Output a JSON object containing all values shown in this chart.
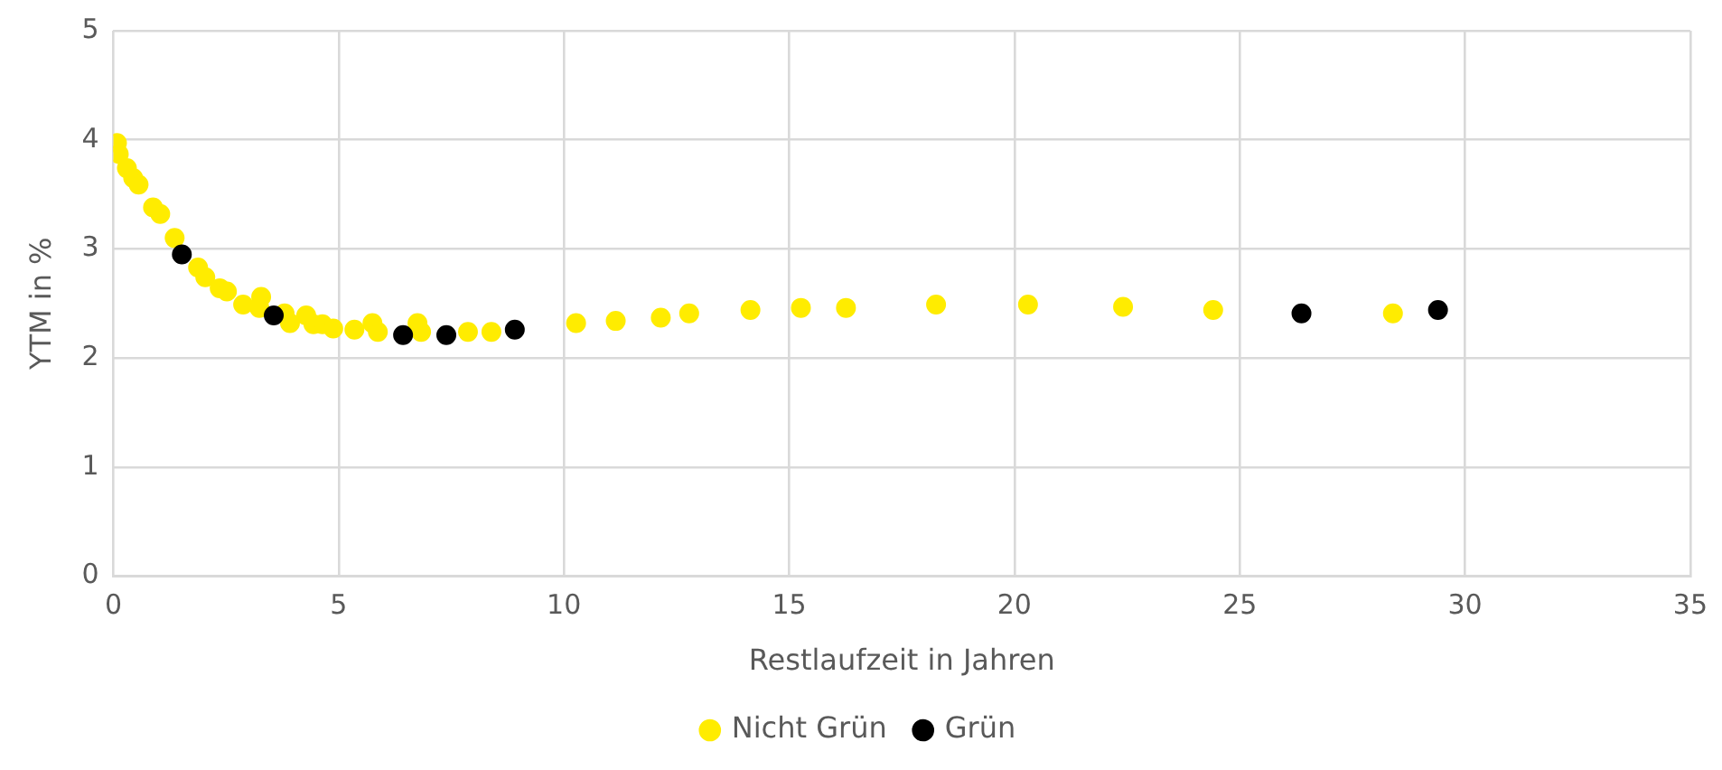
{
  "chart_data": {
    "type": "scatter",
    "xlabel": "Restlaufzeit in Jahren",
    "ylabel": "YTM in %",
    "xlim": [
      0,
      35
    ],
    "xticks": [
      0,
      5,
      10,
      15,
      20,
      25,
      30,
      35
    ],
    "ylim": [
      0,
      5
    ],
    "yticks": [
      0,
      1,
      2,
      3,
      4,
      5
    ],
    "grid": true,
    "legend": "bottom",
    "marker": "circle",
    "series": [
      {
        "name": "Nicht Grün",
        "color": "#ffec00",
        "x": [
          0.08,
          0.12,
          0.3,
          0.44,
          0.56,
          0.88,
          1.04,
          1.36,
          1.88,
          2.04,
          2.36,
          2.52,
          2.88,
          3.24,
          3.28,
          3.8,
          3.92,
          4.28,
          4.44,
          4.64,
          4.88,
          5.35,
          5.75,
          5.87,
          6.75,
          6.83,
          7.87,
          8.39,
          10.27,
          11.15,
          12.15,
          12.78,
          14.14,
          15.26,
          16.26,
          18.26,
          20.3,
          22.41,
          24.41,
          26.4,
          28.4
        ],
        "values": [
          3.97,
          3.87,
          3.74,
          3.65,
          3.59,
          3.38,
          3.32,
          3.1,
          2.83,
          2.74,
          2.64,
          2.61,
          2.49,
          2.46,
          2.56,
          2.41,
          2.32,
          2.39,
          2.31,
          2.31,
          2.27,
          2.26,
          2.32,
          2.24,
          2.32,
          2.24,
          2.24,
          2.24,
          2.32,
          2.34,
          2.37,
          2.41,
          2.44,
          2.46,
          2.46,
          2.49,
          2.49,
          2.47,
          2.44,
          null,
          2.41
        ]
      },
      {
        "name": "Grün",
        "color": "#000000",
        "x": [
          1.52,
          3.56,
          6.43,
          7.39,
          8.91,
          26.37,
          29.4
        ],
        "values": [
          2.95,
          2.39,
          2.21,
          2.21,
          2.26,
          2.41,
          2.44
        ]
      }
    ]
  }
}
